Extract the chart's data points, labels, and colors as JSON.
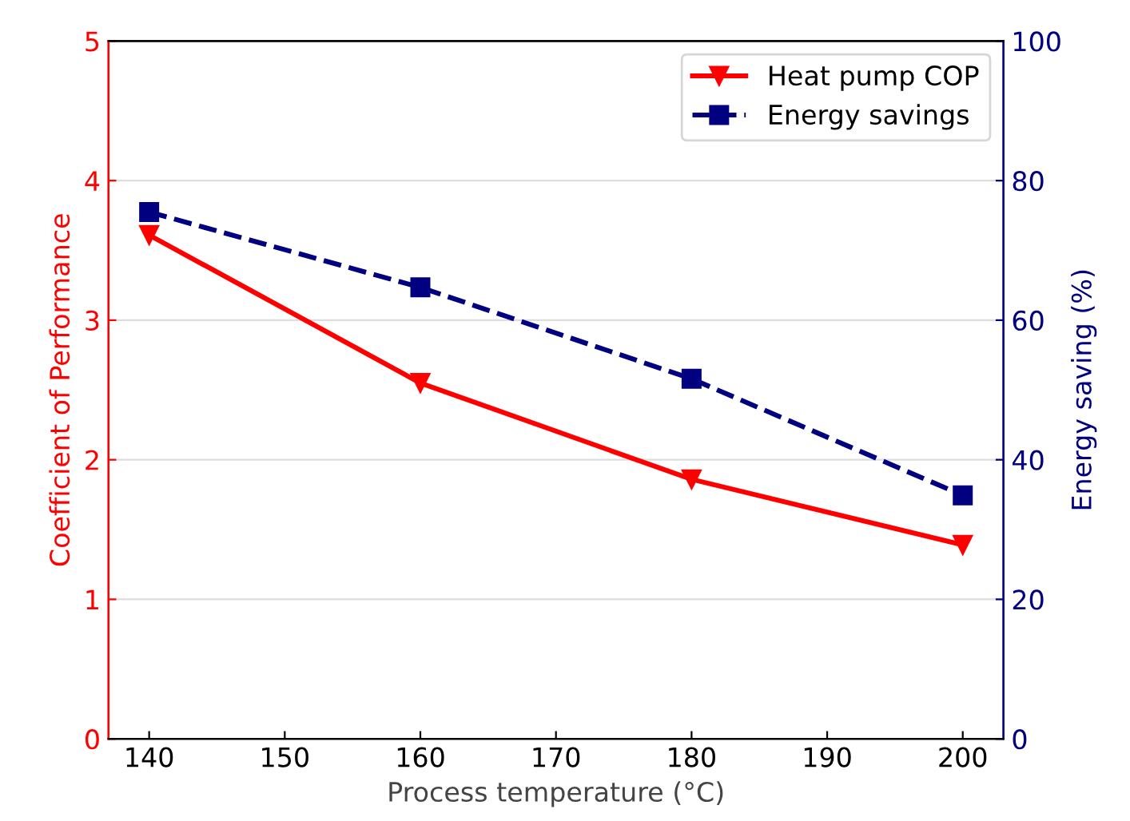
{
  "chart_data": {
    "type": "line",
    "xlabel": "Process temperature (°C)",
    "ylabel": "Coefficient of Performance",
    "y2label": "Energy saving (%)",
    "x": [
      140,
      160,
      180,
      200
    ],
    "series": [
      {
        "name": "Heat pump COP",
        "color": "#ff0000",
        "values": [
          3.61,
          2.55,
          1.86,
          1.39
        ],
        "marker": "triangle",
        "line_style": "solid"
      },
      {
        "name": "Energy savings",
        "color": "#000080",
        "values": [
          75.5,
          64.7,
          51.6,
          34.9
        ],
        "marker": "square",
        "line_style": "dashed",
        "axis": "y2"
      }
    ],
    "xlim": [
      137,
      203
    ],
    "xticks": [
      140,
      150,
      160,
      170,
      180,
      190,
      200
    ],
    "ylim": [
      0,
      5
    ],
    "yticks": [
      0,
      1,
      2,
      3,
      4,
      5
    ],
    "y2lim": [
      0,
      100
    ],
    "y2ticks": [
      0,
      20,
      40,
      60,
      80,
      100
    ],
    "grid": "y",
    "legend": "top right"
  }
}
